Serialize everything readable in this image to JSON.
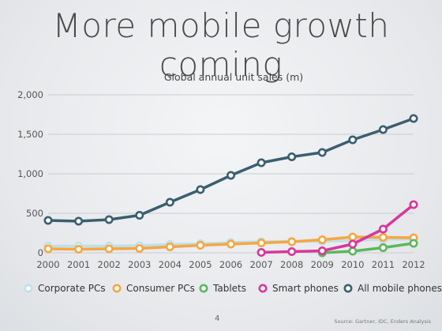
{
  "slide": {
    "title": "More mobile growth coming",
    "page_number": "4",
    "source": "Source: Gartner, IDC, Enders Analysis"
  },
  "chart_data": {
    "type": "line",
    "title": "Global annual unit sales (m)",
    "xlabel": "",
    "ylabel": "",
    "x": [
      "2000",
      "2001",
      "2002",
      "2003",
      "2004",
      "2005",
      "2006",
      "2007",
      "2008",
      "2009",
      "2010",
      "2011",
      "2012"
    ],
    "ylim": [
      0,
      2000
    ],
    "yticks": [
      0,
      500,
      1000,
      1500,
      2000
    ],
    "ytick_labels": [
      "0",
      "500",
      "1,000",
      "1,500",
      "2,000"
    ],
    "grid": true,
    "legend_position": "bottom",
    "series": [
      {
        "name": "Corporate PCs",
        "color": "#bfe0ea",
        "x": [
          "2000",
          "2001",
          "2002",
          "2003",
          "2004",
          "2005",
          "2006",
          "2007",
          "2008",
          "2009",
          "2010",
          "2011",
          "2012"
        ],
        "values": [
          85,
          85,
          85,
          90,
          105,
          115,
          130,
          140,
          145,
          145,
          155,
          170,
          175
        ]
      },
      {
        "name": "Consumer PCs",
        "color": "#f5a742",
        "x": [
          "2000",
          "2001",
          "2002",
          "2003",
          "2004",
          "2005",
          "2006",
          "2007",
          "2008",
          "2009",
          "2010",
          "2011",
          "2012"
        ],
        "values": [
          50,
          45,
          50,
          55,
          75,
          95,
          110,
          125,
          140,
          165,
          200,
          195,
          190
        ]
      },
      {
        "name": "Tablets",
        "color": "#5cb85c",
        "x": [
          "2009",
          "2010",
          "2011",
          "2012"
        ],
        "values": [
          0,
          20,
          65,
          120
        ]
      },
      {
        "name": "Smart phones",
        "color": "#d8379a",
        "x": [
          "2007",
          "2008",
          "2009",
          "2010",
          "2011",
          "2012"
        ],
        "values": [
          5,
          15,
          25,
          110,
          300,
          610
        ]
      },
      {
        "name": "All mobile phones",
        "color": "#3a5f6f",
        "x": [
          "2000",
          "2001",
          "2002",
          "2003",
          "2004",
          "2005",
          "2006",
          "2007",
          "2008",
          "2009",
          "2010",
          "2011",
          "2012"
        ],
        "values": [
          410,
          400,
          420,
          475,
          640,
          800,
          980,
          1140,
          1215,
          1270,
          1430,
          1560,
          1700
        ]
      }
    ]
  }
}
